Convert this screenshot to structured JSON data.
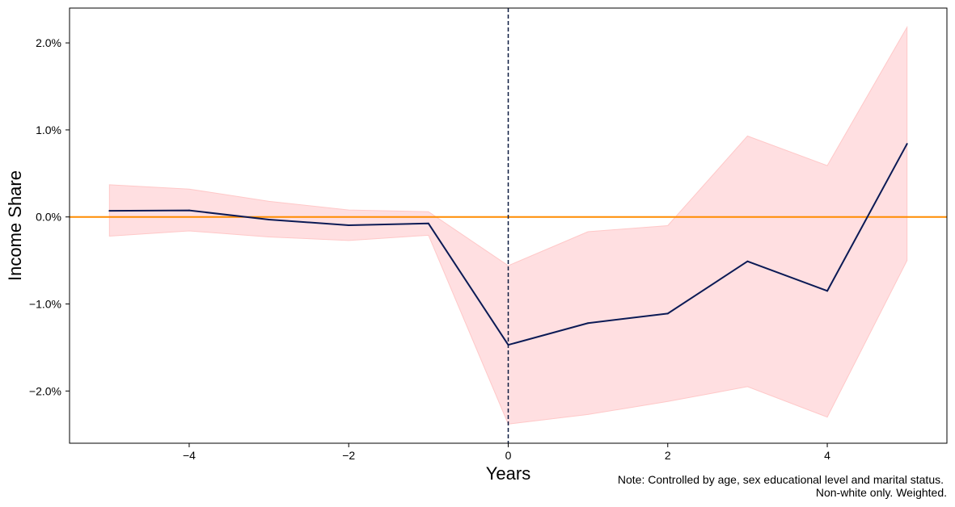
{
  "chart_data": {
    "type": "line",
    "xlabel": "Years",
    "ylabel": "Income Share",
    "xlim": [
      -5.5,
      5.5
    ],
    "ylim": [
      -2.6,
      2.4
    ],
    "x_ticks": [
      -4,
      -2,
      0,
      2,
      4
    ],
    "x_tick_labels": [
      "−4",
      "−2",
      "0",
      "2",
      "4"
    ],
    "y_ticks": [
      -2.0,
      -1.0,
      0.0,
      1.0,
      2.0
    ],
    "y_tick_labels": [
      "−2.0%",
      "−1.0%",
      "0.0%",
      "1.0%",
      "2.0%"
    ],
    "x": [
      -5,
      -4,
      -3,
      -2,
      -1,
      0,
      1,
      2,
      3,
      4,
      5
    ],
    "series": [
      {
        "values": [
          0.07,
          0.075,
          -0.03,
          -0.095,
          -0.075,
          -1.47,
          -1.22,
          -1.11,
          -0.51,
          -0.85,
          0.84
        ],
        "color": "#0b1a55"
      }
    ],
    "confidence_band": {
      "lower": [
        -0.22,
        -0.16,
        -0.23,
        -0.27,
        -0.21,
        -2.38,
        -2.27,
        -2.12,
        -1.95,
        -2.3,
        -0.5
      ],
      "upper": [
        0.37,
        0.32,
        0.18,
        0.08,
        0.06,
        -0.56,
        -0.17,
        -0.1,
        0.93,
        0.59,
        2.18
      ],
      "fill_color": "#ffdfe1",
      "edge_color": "#ffc8c8"
    },
    "reference_lines": {
      "horizontal_y": 0,
      "horizontal_color": "#ff8c00",
      "vertical_x": 0,
      "vertical_color": "#0b1a40",
      "vertical_style": "dashed"
    },
    "grid": false,
    "note": [
      "Note: Controlled by age, sex educational level and marital status.",
      "Non-white only. Weighted."
    ]
  }
}
